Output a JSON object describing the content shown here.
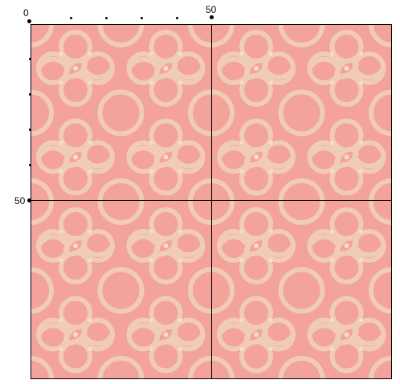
{
  "ruler": {
    "x_labels": [
      "0",
      "50"
    ],
    "y_labels": [
      "50"
    ]
  },
  "pattern": {
    "background_color": "#f3a39a",
    "ornament_color": "#f0ccb6",
    "dot_color": "#f7ddd0",
    "guide_color": "#000000"
  }
}
